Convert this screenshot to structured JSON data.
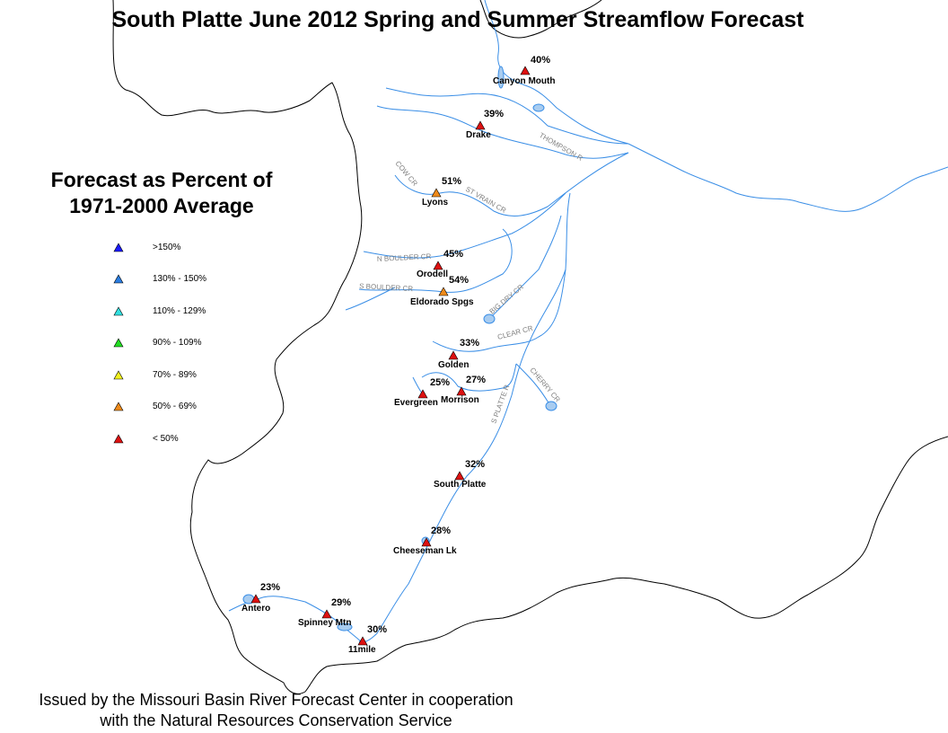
{
  "title": "South Platte June 2012 Spring and Summer Streamflow Forecast",
  "legend": {
    "title_line1": "Forecast as Percent of",
    "title_line2": "1971-2000 Average",
    "items": [
      {
        "label": ">150%",
        "color": "#1a1aff"
      },
      {
        "label": "130% - 150%",
        "color": "#2a7de1"
      },
      {
        "label": "110% - 129%",
        "color": "#33e0e0"
      },
      {
        "label": "90% - 109%",
        "color": "#22dd22"
      },
      {
        "label": "70% - 89%",
        "color": "#f2f21e"
      },
      {
        "label": "50% - 69%",
        "color": "#ee8a1a"
      },
      {
        "label": "< 50%",
        "color": "#dd1111"
      }
    ]
  },
  "stations": [
    {
      "name": "Canyon Mouth",
      "percent": "40%",
      "category": "< 50%"
    },
    {
      "name": "Drake",
      "percent": "39%",
      "category": "< 50%"
    },
    {
      "name": "Lyons",
      "percent": "51%",
      "category": "50% - 69%"
    },
    {
      "name": "Orodell",
      "percent": "45%",
      "category": "< 50%"
    },
    {
      "name": "Eldorado Spgs",
      "percent": "54%",
      "category": "50% - 69%"
    },
    {
      "name": "Golden",
      "percent": "33%",
      "category": "< 50%"
    },
    {
      "name": "Morrison",
      "percent": "27%",
      "category": "< 50%"
    },
    {
      "name": "Evergreen",
      "percent": "25%",
      "category": "< 50%"
    },
    {
      "name": "South Platte",
      "percent": "32%",
      "category": "< 50%"
    },
    {
      "name": "Cheeseman Lk",
      "percent": "28%",
      "category": "< 50%"
    },
    {
      "name": "Antero",
      "percent": "23%",
      "category": "< 50%"
    },
    {
      "name": "Spinney Mtn",
      "percent": "29%",
      "category": "< 50%"
    },
    {
      "name": "11mile",
      "percent": "30%",
      "category": "< 50%"
    }
  ],
  "rivers": {
    "thompson": "THOMPSON R",
    "cow": "COW CR",
    "st_vrain": "ST VRAIN CR",
    "n_boulder": "N BOULDER CR",
    "s_boulder": "S BOULDER CR",
    "big_dry": "BIG DRY CR",
    "clear": "CLEAR CR",
    "cherry": "CHERRY CR",
    "s_platte": "S PLATTE R"
  },
  "footer": {
    "line1": "Issued by the Missouri Basin River Forecast Center in cooperation",
    "line2": "with the Natural Resources Conservation Service"
  }
}
